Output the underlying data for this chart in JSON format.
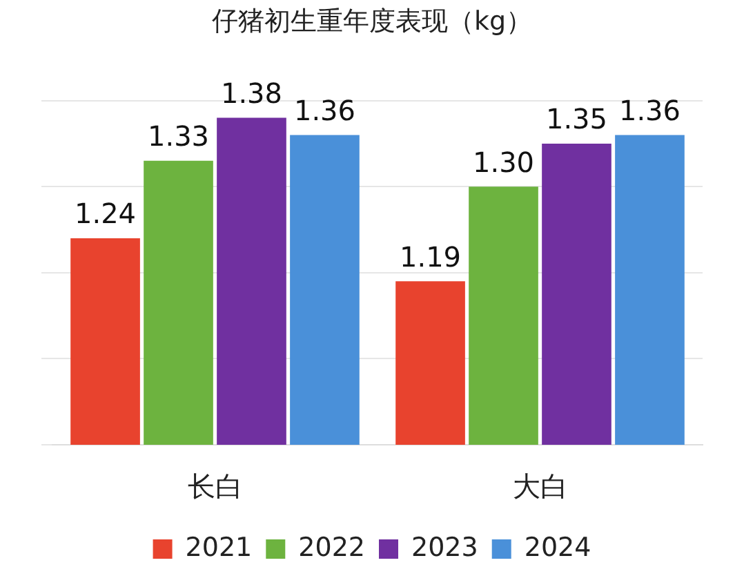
{
  "chart_data": {
    "type": "bar",
    "title": "仔猪初生重年度表现（kg）",
    "categories": [
      "长白",
      "大白"
    ],
    "series": [
      {
        "name": "2021",
        "color": "#e8432e",
        "values": [
          1.24,
          1.19
        ],
        "value_labels": [
          "1.24",
          "1.19"
        ]
      },
      {
        "name": "2022",
        "color": "#6db33f",
        "values": [
          1.33,
          1.3
        ],
        "value_labels": [
          "1.33",
          "1.30"
        ]
      },
      {
        "name": "2023",
        "color": "#7030a0",
        "values": [
          1.38,
          1.35
        ],
        "value_labels": [
          "1.38",
          "1.35"
        ]
      },
      {
        "name": "2024",
        "color": "#4a90d9",
        "values": [
          1.36,
          1.36
        ],
        "value_labels": [
          "1.36",
          "1.36"
        ]
      }
    ],
    "ylim": [
      1.0,
      1.4
    ],
    "yticks": [
      {
        "value": 1.0,
        "label": null
      },
      {
        "value": 1.1,
        "label": null
      },
      {
        "value": 1.2,
        "label": null
      },
      {
        "value": 1.3,
        "label": null
      },
      {
        "value": 1.4,
        "label": null
      }
    ],
    "tick_labels": "x",
    "grid": "y",
    "legend": "bottom"
  }
}
